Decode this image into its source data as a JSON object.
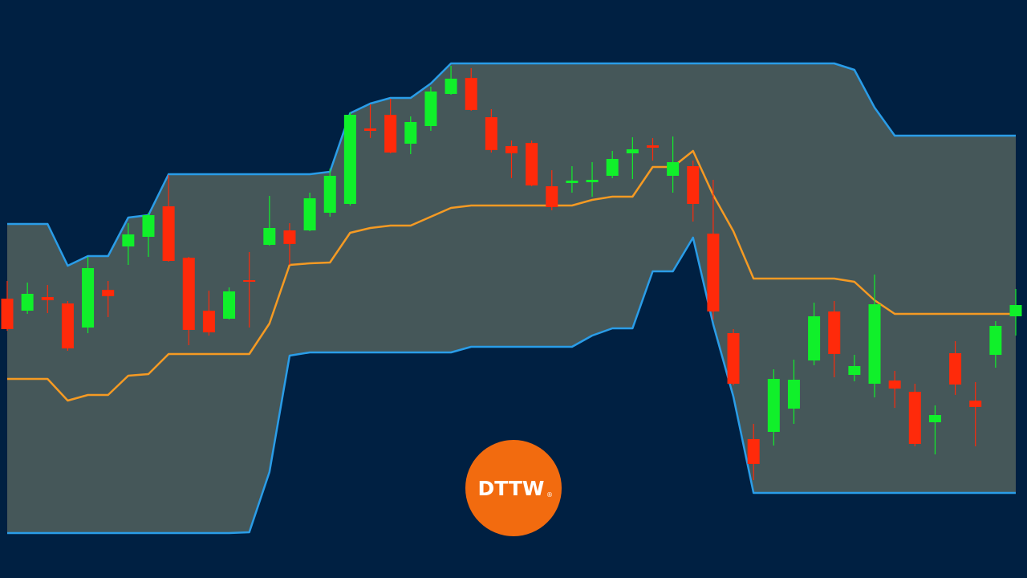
{
  "chart_data": {
    "type": "candlestick",
    "ylim": [
      0,
      720
    ],
    "up_color": "#10f02a",
    "down_color": "#ff2a0a",
    "channel_fill": "#455759",
    "background": "#002042",
    "open": [
      348,
      333,
      350,
      342,
      312,
      359,
      413,
      425,
      463,
      399,
      333,
      323,
      371,
      415,
      433,
      433,
      455,
      466,
      560,
      577,
      541,
      563,
      603,
      623,
      574,
      538,
      542,
      488,
      492,
      493,
      501,
      529,
      539,
      501,
      513,
      429,
      305,
      173,
      182,
      211,
      271,
      332,
      253,
      242,
      246,
      232,
      194,
      280,
      221,
      278,
      326
    ],
    "high": [
      370,
      368,
      365,
      345,
      400,
      370,
      442,
      455,
      502,
      400,
      358,
      362,
      406,
      476,
      442,
      480,
      510,
      580,
      590,
      597,
      575,
      612,
      638,
      635,
      584,
      545,
      545,
      508,
      513,
      518,
      532,
      549,
      548,
      550,
      520,
      496,
      310,
      192,
      260,
      272,
      343,
      345,
      278,
      378,
      258,
      242,
      215,
      295,
      244,
      320,
      360
    ],
    "low": [
      308,
      329,
      330,
      283,
      305,
      325,
      390,
      400,
      394,
      290,
      302,
      322,
      312,
      414,
      390,
      432,
      450,
      464,
      548,
      529,
      528,
      557,
      602,
      582,
      530,
      498,
      488,
      458,
      480,
      475,
      498,
      497,
      520,
      480,
      444,
      322,
      240,
      122,
      165,
      192,
      265,
      250,
      245,
      225,
      212,
      164,
      154,
      228,
      164,
      262,
      302
    ],
    "close": [
      310,
      354,
      346,
      286,
      386,
      351,
      428,
      452,
      395,
      309,
      306,
      357,
      369,
      436,
      416,
      473,
      501,
      577,
      557,
      530,
      568,
      606,
      622,
      583,
      533,
      529,
      489,
      462,
      495,
      496,
      522,
      534,
      536,
      518,
      466,
      332,
      242,
      142,
      248,
      247,
      326,
      279,
      264,
      341,
      236,
      167,
      203,
      241,
      213,
      314,
      340
    ],
    "upper_band": {
      "color": "#2a9de8",
      "values": [
        441,
        441,
        441,
        389,
        401,
        401,
        449,
        452,
        503,
        503,
        503,
        503,
        503,
        503,
        503,
        503,
        506,
        579,
        591,
        598,
        598,
        616,
        641,
        641,
        641,
        641,
        641,
        641,
        641,
        641,
        641,
        641,
        641,
        641,
        641,
        641,
        641,
        641,
        641,
        641,
        641,
        641,
        633,
        586,
        551,
        551,
        551,
        551,
        551,
        551,
        551
      ]
    },
    "middle_band": {
      "color": "#f59a23",
      "values": [
        248,
        248,
        248,
        221,
        228,
        228,
        252,
        254,
        279,
        279,
        279,
        279,
        279,
        317,
        390,
        392,
        393,
        430,
        436,
        439,
        439,
        450,
        461,
        464,
        464,
        464,
        464,
        464,
        464,
        471,
        475,
        475,
        512,
        512,
        532,
        477,
        432,
        373,
        373,
        373,
        373,
        373,
        369,
        346,
        329,
        329,
        329,
        329,
        329,
        329,
        329
      ]
    },
    "lower_band": {
      "color": "#2a9de8",
      "values": [
        56,
        56,
        56,
        56,
        56,
        56,
        56,
        56,
        56,
        56,
        56,
        56,
        57,
        132,
        277,
        281,
        281,
        281,
        281,
        281,
        281,
        281,
        281,
        288,
        288,
        288,
        288,
        288,
        288,
        302,
        311,
        311,
        382,
        382,
        424,
        316,
        226,
        106,
        106,
        106,
        106,
        106,
        106,
        106,
        106,
        106,
        106,
        106,
        106,
        106,
        106
      ]
    }
  },
  "logo": {
    "text": "DTTW",
    "mark": "®",
    "color": "#f26b0f"
  }
}
